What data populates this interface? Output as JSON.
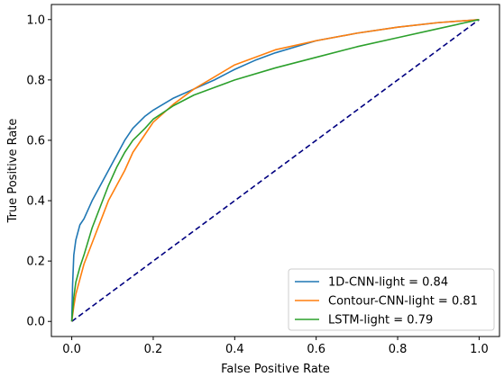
{
  "chart_data": {
    "type": "line",
    "xlabel": "False Positive Rate",
    "ylabel": "True Positive Rate",
    "xlim": [
      -0.05,
      1.05
    ],
    "ylim": [
      -0.05,
      1.05
    ],
    "x_ticks": [
      "0.0",
      "0.2",
      "0.4",
      "0.6",
      "0.8",
      "1.0"
    ],
    "y_ticks": [
      "0.0",
      "0.2",
      "0.4",
      "0.6",
      "0.8",
      "1.0"
    ],
    "grid": false,
    "legend_position": "lower-right",
    "series": [
      {
        "name": "1D-CNN-light = 0.84",
        "color": "#1f77b4",
        "points": [
          [
            0,
            0
          ],
          [
            0.002,
            0.12
          ],
          [
            0.005,
            0.22
          ],
          [
            0.01,
            0.27
          ],
          [
            0.02,
            0.32
          ],
          [
            0.03,
            0.34
          ],
          [
            0.05,
            0.4
          ],
          [
            0.07,
            0.45
          ],
          [
            0.09,
            0.5
          ],
          [
            0.11,
            0.55
          ],
          [
            0.13,
            0.6
          ],
          [
            0.15,
            0.64
          ],
          [
            0.18,
            0.68
          ],
          [
            0.2,
            0.7
          ],
          [
            0.25,
            0.74
          ],
          [
            0.3,
            0.77
          ],
          [
            0.35,
            0.8
          ],
          [
            0.4,
            0.835
          ],
          [
            0.45,
            0.865
          ],
          [
            0.5,
            0.89
          ],
          [
            0.55,
            0.91
          ],
          [
            0.6,
            0.93
          ],
          [
            0.7,
            0.955
          ],
          [
            0.8,
            0.975
          ],
          [
            0.9,
            0.99
          ],
          [
            1.0,
            1.0
          ]
        ]
      },
      {
        "name": "Contour-CNN-light = 0.81",
        "color": "#ff7f0e",
        "points": [
          [
            0,
            0
          ],
          [
            0.005,
            0.05
          ],
          [
            0.01,
            0.09
          ],
          [
            0.02,
            0.14
          ],
          [
            0.03,
            0.19
          ],
          [
            0.05,
            0.26
          ],
          [
            0.07,
            0.33
          ],
          [
            0.09,
            0.4
          ],
          [
            0.11,
            0.45
          ],
          [
            0.13,
            0.5
          ],
          [
            0.15,
            0.56
          ],
          [
            0.18,
            0.62
          ],
          [
            0.2,
            0.66
          ],
          [
            0.25,
            0.72
          ],
          [
            0.3,
            0.77
          ],
          [
            0.35,
            0.81
          ],
          [
            0.4,
            0.85
          ],
          [
            0.45,
            0.875
          ],
          [
            0.5,
            0.9
          ],
          [
            0.55,
            0.915
          ],
          [
            0.6,
            0.93
          ],
          [
            0.7,
            0.955
          ],
          [
            0.8,
            0.975
          ],
          [
            0.9,
            0.99
          ],
          [
            1.0,
            1.0
          ]
        ]
      },
      {
        "name": "LSTM-light = 0.79",
        "color": "#2ca02c",
        "points": [
          [
            0,
            0
          ],
          [
            0.005,
            0.08
          ],
          [
            0.01,
            0.13
          ],
          [
            0.02,
            0.18
          ],
          [
            0.03,
            0.22
          ],
          [
            0.05,
            0.31
          ],
          [
            0.07,
            0.38
          ],
          [
            0.09,
            0.45
          ],
          [
            0.11,
            0.51
          ],
          [
            0.13,
            0.56
          ],
          [
            0.15,
            0.6
          ],
          [
            0.18,
            0.64
          ],
          [
            0.2,
            0.67
          ],
          [
            0.25,
            0.715
          ],
          [
            0.3,
            0.75
          ],
          [
            0.35,
            0.775
          ],
          [
            0.4,
            0.8
          ],
          [
            0.5,
            0.84
          ],
          [
            0.6,
            0.875
          ],
          [
            0.7,
            0.91
          ],
          [
            0.8,
            0.94
          ],
          [
            0.9,
            0.97
          ],
          [
            1.0,
            1.0
          ]
        ]
      }
    ],
    "reference_line": {
      "color": "#000080",
      "dash": "dashed",
      "points": [
        [
          0,
          0
        ],
        [
          1,
          1
        ]
      ]
    }
  }
}
